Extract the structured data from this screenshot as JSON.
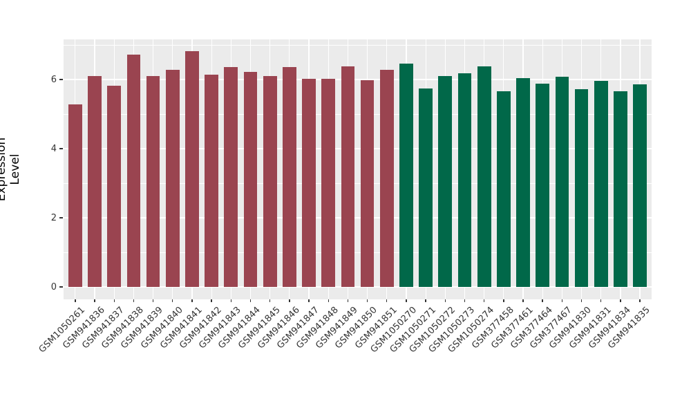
{
  "chart_data": {
    "type": "bar",
    "title": "",
    "xlabel": "",
    "ylabel": "Expression Level",
    "ylim": [
      0,
      7.16
    ],
    "yticks": [
      0,
      2,
      4,
      6
    ],
    "yticks_minor": [
      1,
      3,
      5,
      7
    ],
    "grid": true,
    "legend": false,
    "panel_bg": "#EBEBEB",
    "grid_color": "#FFFFFF",
    "tick_text_color": "#333333",
    "categories": [
      "GSM1050261",
      "GSM941836",
      "GSM941837",
      "GSM941838",
      "GSM941839",
      "GSM941840",
      "GSM941841",
      "GSM941842",
      "GSM941843",
      "GSM941844",
      "GSM941845",
      "GSM941846",
      "GSM941847",
      "GSM941848",
      "GSM941849",
      "GSM941850",
      "GSM941851",
      "GSM1050270",
      "GSM1050271",
      "GSM1050272",
      "GSM1050273",
      "GSM1050274",
      "GSM377458",
      "GSM377461",
      "GSM377464",
      "GSM377467",
      "GSM941830",
      "GSM941831",
      "GSM941834",
      "GSM941835"
    ],
    "values": [
      5.29,
      6.1,
      5.83,
      6.72,
      6.1,
      6.28,
      6.82,
      6.15,
      6.37,
      6.22,
      6.11,
      6.36,
      6.03,
      6.03,
      6.38,
      5.98,
      6.29,
      6.47,
      5.75,
      6.1,
      6.18,
      6.38,
      5.66,
      6.05,
      5.88,
      6.09,
      5.72,
      5.96,
      5.67,
      5.87
    ],
    "groups": [
      {
        "name": "group-1",
        "color": "#9A4450",
        "from": 0,
        "to": 16
      },
      {
        "name": "group-2",
        "color": "#016849",
        "from": 17,
        "to": 29
      }
    ]
  }
}
